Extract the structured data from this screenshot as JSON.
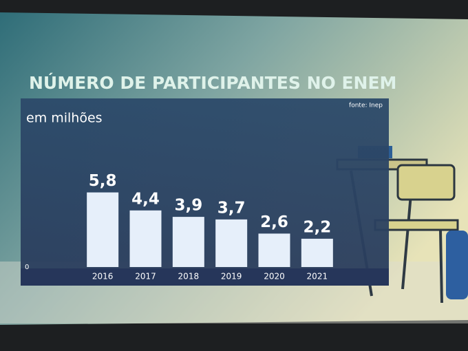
{
  "chart_data": {
    "type": "bar",
    "title": "NÚMERO DE PARTICIPANTES NO ENEM",
    "subtitle": "em milhões",
    "source": "fonte: Inep",
    "categories": [
      "2016",
      "2017",
      "2018",
      "2019",
      "2020",
      "2021"
    ],
    "values": [
      5.8,
      4.4,
      3.9,
      3.7,
      2.6,
      2.2
    ],
    "value_labels": [
      "5,8",
      "4,4",
      "3,9",
      "3,7",
      "2,6",
      "2,2"
    ],
    "color": "#e6effa",
    "ylim": [
      0,
      13
    ],
    "yticks": [
      0
    ]
  }
}
